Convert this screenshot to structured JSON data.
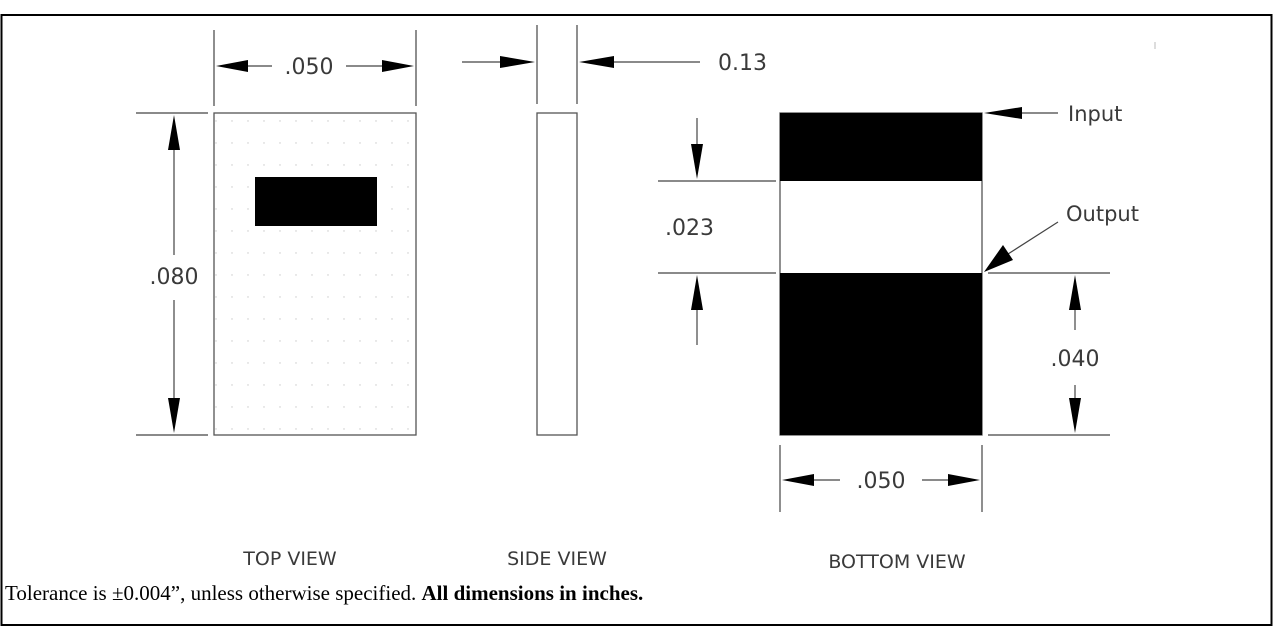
{
  "views": {
    "top": "TOP VIEW",
    "side": "SIDE VIEW",
    "bottom": "BOTTOM VIEW"
  },
  "dimensions": {
    "top_width": ".050",
    "top_height": ".080",
    "side_thickness": "0.13",
    "bottom_gap": ".023",
    "bottom_pad": ".040",
    "bottom_width": ".050"
  },
  "callouts": {
    "input": "Input",
    "output": "Output"
  },
  "footnote": {
    "text": "Tolerance is ±0.004”, unless otherwise specified. ",
    "emphasis": "All dimensions in inches."
  }
}
